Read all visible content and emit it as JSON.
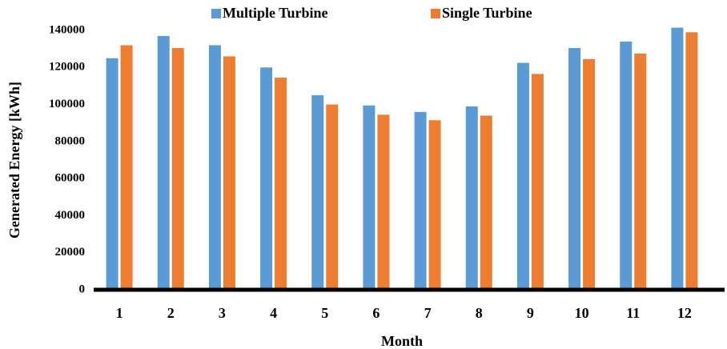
{
  "chart_data": {
    "type": "bar",
    "xlabel": "Month",
    "ylabel": "Generated Energy [kWh]",
    "categories": [
      "1",
      "2",
      "3",
      "4",
      "5",
      "6",
      "7",
      "8",
      "9",
      "10",
      "11",
      "12"
    ],
    "series": [
      {
        "name": "Multiple Turbine",
        "color": "#5b9bd5",
        "values": [
          125000,
          137000,
          132000,
          120000,
          105000,
          99500,
          96000,
          99000,
          122500,
          130500,
          134000,
          141500
        ]
      },
      {
        "name": "Single Turbine",
        "color": "#ed7d31",
        "values": [
          132000,
          130500,
          126000,
          114500,
          100000,
          94500,
          91500,
          94000,
          116500,
          124500,
          127500,
          139000
        ]
      }
    ],
    "ylim": [
      0,
      140000
    ],
    "yticks": [
      0,
      20000,
      40000,
      60000,
      80000,
      100000,
      120000,
      140000
    ],
    "grid": false,
    "legend": "top"
  }
}
